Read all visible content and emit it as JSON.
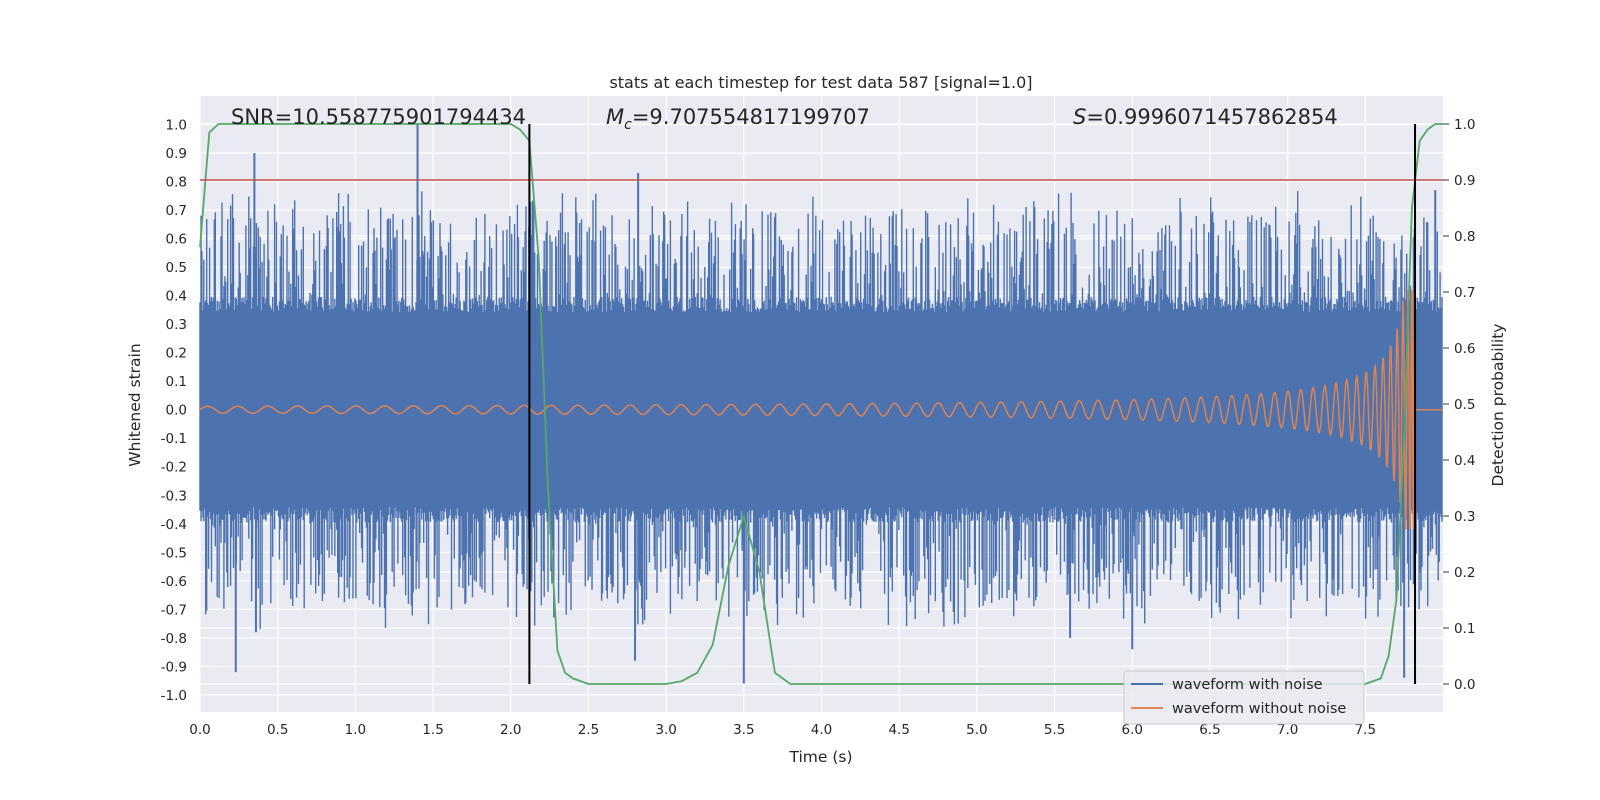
{
  "chart_data": {
    "type": "line",
    "title": "stats at each timestep for test data 587 [signal=1.0]",
    "xlabel": "Time (s)",
    "ylabel_left": "Whitened strain",
    "ylabel_right": "Detection probability",
    "xlim": [
      0.0,
      8.0
    ],
    "ylim_left": [
      -1.06,
      1.1
    ],
    "ylim_right": [
      -0.05,
      1.05
    ],
    "x_ticks": [
      "0.0",
      "0.5",
      "1.0",
      "1.5",
      "2.0",
      "2.5",
      "3.0",
      "3.5",
      "4.0",
      "4.5",
      "5.0",
      "5.5",
      "6.0",
      "6.5",
      "7.0",
      "7.5"
    ],
    "y_ticks_left": [
      "1.0",
      "0.9",
      "0.8",
      "0.7",
      "0.6",
      "0.5",
      "0.4",
      "0.3",
      "0.2",
      "0.1",
      "0.0",
      "-0.1",
      "-0.2",
      "-0.3",
      "-0.4",
      "-0.5",
      "-0.6",
      "-0.7",
      "-0.8",
      "-0.9",
      "-1.0"
    ],
    "y_ticks_right": [
      "1.0",
      "0.9",
      "0.8",
      "0.7",
      "0.6",
      "0.5",
      "0.4",
      "0.3",
      "0.2",
      "0.1",
      "0.0"
    ],
    "annotations": {
      "snr": "SNR=10.558775901794434",
      "mc_symbol": "M",
      "mc_sub": "c",
      "mc_value": "=9.707554817199707",
      "s_symbol": "S",
      "s_value": "=0.9996071457862854"
    },
    "legend": {
      "placement": "bottom-right",
      "entries": [
        {
          "label": "waveform with noise",
          "color": "#4c72b0"
        },
        {
          "label": "waveform without noise",
          "color": "#dd8452"
        }
      ]
    },
    "threshold_line": {
      "axis": "right",
      "y": 0.9,
      "color": "#c44e52"
    },
    "vertical_markers": {
      "x": [
        2.12,
        7.82
      ],
      "color": "#000000"
    },
    "series": [
      {
        "name": "waveform with noise",
        "axis": "left",
        "color": "#4c72b0",
        "kind": "noisy-strain",
        "typical_envelope": 0.36,
        "notable_peaks": [
          {
            "x": 0.35,
            "y": 0.9
          },
          {
            "x": 1.4,
            "y": 1.0
          },
          {
            "x": 2.82,
            "y": 0.83
          },
          {
            "x": 0.23,
            "y": -0.92
          },
          {
            "x": 0.36,
            "y": -0.78
          },
          {
            "x": 2.8,
            "y": -0.88
          },
          {
            "x": 3.5,
            "y": -0.96
          },
          {
            "x": 6.0,
            "y": -0.84
          },
          {
            "x": 5.6,
            "y": -0.8
          },
          {
            "x": 7.75,
            "y": -0.94
          },
          {
            "x": 7.95,
            "y": 0.77
          }
        ]
      },
      {
        "name": "waveform without noise",
        "axis": "left",
        "color": "#dd8452",
        "kind": "chirp",
        "start_amplitude": 0.012,
        "peak_amplitude": 0.42,
        "merger_time": 7.82
      },
      {
        "name": "detection probability",
        "axis": "right",
        "color": "#55a868",
        "x": [
          0.0,
          0.06,
          0.12,
          0.3,
          1.0,
          2.0,
          2.06,
          2.12,
          2.18,
          2.24,
          2.3,
          2.35,
          2.4,
          2.5,
          3.0,
          3.1,
          3.2,
          3.3,
          3.4,
          3.5,
          3.6,
          3.7,
          3.8,
          4.0,
          7.5,
          7.6,
          7.65,
          7.7,
          7.75,
          7.8,
          7.85,
          7.9,
          7.95,
          8.0
        ],
        "y": [
          0.78,
          0.985,
          1.0,
          1.0,
          1.0,
          1.0,
          0.99,
          0.97,
          0.76,
          0.35,
          0.06,
          0.02,
          0.01,
          0.0,
          0.0,
          0.005,
          0.02,
          0.07,
          0.21,
          0.3,
          0.2,
          0.02,
          0.0,
          0.0,
          0.0,
          0.01,
          0.05,
          0.15,
          0.45,
          0.85,
          0.97,
          0.99,
          1.0,
          1.0
        ]
      }
    ]
  }
}
